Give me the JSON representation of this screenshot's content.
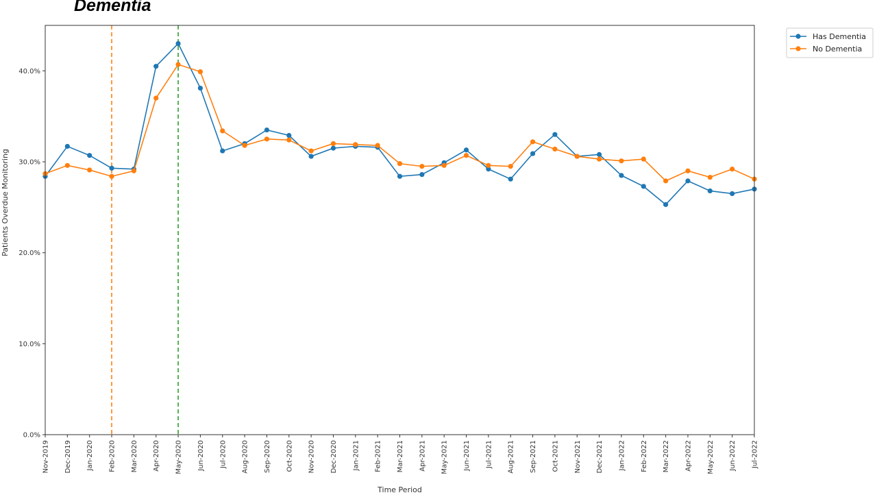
{
  "page_title": "Dementia",
  "chart_data": {
    "type": "line",
    "xlabel": "Time Period",
    "ylabel": "Patients Overdue Monitoring",
    "ylim": [
      0,
      45
    ],
    "yticks": [
      0,
      10,
      20,
      30,
      40
    ],
    "ytick_labels": [
      "0.0%",
      "10.0%",
      "20.0%",
      "30.0%",
      "40.0%"
    ],
    "grid": false,
    "legend_position": "outside top-right",
    "categories": [
      "Nov-2019",
      "Dec-2019",
      "Jan-2020",
      "Feb-2020",
      "Mar-2020",
      "Apr-2020",
      "May-2020",
      "Jun-2020",
      "Jul-2020",
      "Aug-2020",
      "Sep-2020",
      "Oct-2020",
      "Nov-2020",
      "Dec-2020",
      "Jan-2021",
      "Feb-2021",
      "Mar-2021",
      "Apr-2021",
      "May-2021",
      "Jun-2021",
      "Jul-2021",
      "Aug-2021",
      "Sep-2021",
      "Oct-2021",
      "Nov-2021",
      "Dec-2021",
      "Jan-2022",
      "Feb-2022",
      "Mar-2022",
      "Apr-2022",
      "May-2022",
      "Jun-2022",
      "Jul-2022"
    ],
    "series": [
      {
        "name": "Has Dementia",
        "color": "#1f77b4",
        "values": [
          28.4,
          31.7,
          30.7,
          29.3,
          29.2,
          40.5,
          43.0,
          38.1,
          31.2,
          32.0,
          33.5,
          32.9,
          30.6,
          31.5,
          31.7,
          31.6,
          28.4,
          28.6,
          29.9,
          31.3,
          29.2,
          28.1,
          30.9,
          33.0,
          30.6,
          30.8,
          28.5,
          27.3,
          25.3,
          27.9,
          26.8,
          26.5,
          27.0
        ]
      },
      {
        "name": "No Dementia",
        "color": "#ff7f0e",
        "values": [
          28.7,
          29.6,
          29.1,
          28.4,
          29.0,
          37.0,
          40.7,
          39.9,
          33.4,
          31.8,
          32.5,
          32.4,
          31.2,
          32.0,
          31.9,
          31.8,
          29.8,
          29.5,
          29.6,
          30.7,
          29.6,
          29.5,
          32.2,
          31.4,
          30.6,
          30.3,
          30.1,
          30.3,
          27.9,
          29.0,
          28.3,
          29.2,
          28.1
        ]
      }
    ],
    "vertical_lines": [
      {
        "category": "Feb-2020",
        "color": "#ff7f0e",
        "style": "dashed"
      },
      {
        "category": "May-2020",
        "color": "#2ca02c",
        "style": "dashed"
      }
    ]
  }
}
